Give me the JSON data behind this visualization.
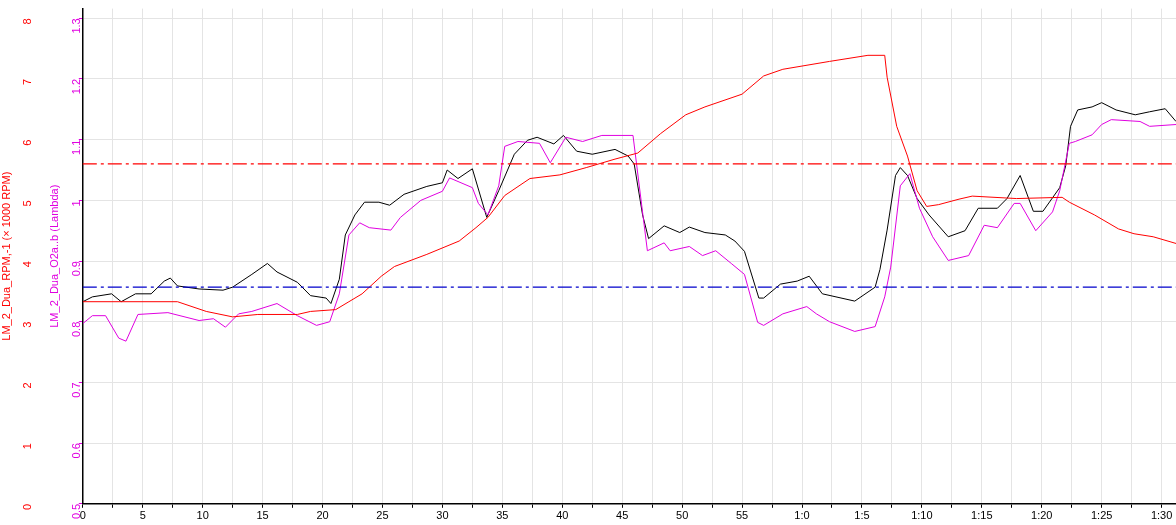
{
  "chart_data": {
    "type": "line",
    "y2label": "LM_2_Dua_O2a..b (Lambda)",
    "ylabel": "LM_2_Dua_RPM,-1 (× 1000 RPM)",
    "xlim": [
      0,
      91.2
    ],
    "xticks": [
      0,
      {
        "value": 2.5,
        "label": null
      },
      5,
      {
        "value": 7.5,
        "label": null
      },
      10,
      {
        "value": 12.5,
        "label": null
      },
      15,
      {
        "value": 17.5,
        "label": null
      },
      20,
      {
        "value": 22.5,
        "label": null
      },
      25,
      {
        "value": 27.5,
        "label": null
      },
      30,
      {
        "value": 32.5,
        "label": null
      },
      35,
      {
        "value": 37.5,
        "label": null
      },
      40,
      {
        "value": 42.5,
        "label": null
      },
      45,
      {
        "value": 47.5,
        "label": null
      },
      50,
      {
        "value": 52.5,
        "label": null
      },
      55,
      {
        "value": 57.5,
        "label": null
      },
      {
        "value": 60,
        "label": "1:0"
      },
      {
        "value": 62.5,
        "label": null
      },
      {
        "value": 65,
        "label": "1:5"
      },
      {
        "value": 67.5,
        "label": null
      },
      {
        "value": 70,
        "label": "1:10"
      },
      {
        "value": 72.5,
        "label": null
      },
      {
        "value": 75,
        "label": "1:15"
      },
      {
        "value": 77.5,
        "label": null
      },
      {
        "value": 80,
        "label": "1:20"
      },
      {
        "value": 82.5,
        "label": null
      },
      {
        "value": 85,
        "label": "1:25"
      },
      {
        "value": 87.5,
        "label": null
      },
      {
        "value": 90,
        "label": "1:30"
      }
    ],
    "y2lim": [
      0.5,
      1.316
    ],
    "y2ticks": [
      0.5,
      0.6,
      0.7,
      0.8,
      0.9,
      1.0,
      1.1,
      1.2,
      1.3
    ],
    "ylim": [
      0,
      8.16
    ],
    "yticks": [
      0,
      1,
      2,
      3,
      4,
      5,
      6,
      7,
      8
    ],
    "grid": true,
    "legend": false,
    "marker": "none",
    "line_style": "solid",
    "ref_lines": [
      {
        "axis": "y",
        "value": 5.6,
        "color": "#ff0000",
        "line_style": "dashed"
      },
      {
        "axis": "y2",
        "value": 0.857,
        "color": "#0000cc",
        "line_style": "dashed"
      }
    ],
    "series": [
      {
        "color": "#ff0000",
        "axis": "y",
        "x": [
          0,
          7.9,
          10.3,
          12.5,
          14.6,
          17.9,
          19.0,
          21.1,
          22.2,
          23.3,
          24.9,
          26.0,
          28.7,
          31.4,
          32.8,
          33.8,
          35.2,
          37.3,
          39.8,
          42.0,
          44.4,
          46.3,
          48.2,
          50.3,
          51.9,
          55.0,
          56.8,
          58.4,
          62.3,
          65.5,
          66.9,
          67.1,
          67.9,
          68.8,
          69.6,
          70.4,
          71.4,
          73.1,
          74.2,
          77.9,
          81.7,
          82.3,
          84.4,
          86.4,
          87.7,
          89.3,
          91.2
        ],
        "values": [
          3.33,
          3.33,
          3.17,
          3.08,
          3.12,
          3.12,
          3.17,
          3.2,
          3.33,
          3.46,
          3.75,
          3.91,
          4.11,
          4.33,
          4.55,
          4.72,
          5.08,
          5.36,
          5.42,
          5.54,
          5.68,
          5.78,
          6.1,
          6.41,
          6.54,
          6.75,
          7.05,
          7.16,
          7.29,
          7.39,
          7.39,
          7.03,
          6.22,
          5.73,
          5.16,
          4.9,
          4.93,
          5.02,
          5.07,
          5.03,
          5.05,
          4.97,
          4.76,
          4.53,
          4.45,
          4.4,
          4.29
        ]
      },
      {
        "color": "#e000e0",
        "axis": "y2",
        "x": [
          0,
          0.8,
          1.9,
          3.0,
          3.6,
          4.6,
          7.1,
          9.7,
          10.9,
          11.9,
          13.0,
          14.1,
          16.2,
          17.9,
          19.5,
          20.6,
          21.4,
          22.2,
          23.1,
          23.9,
          25.7,
          26.5,
          28.2,
          30.0,
          30.6,
          32.5,
          33.0,
          33.8,
          34.7,
          35.2,
          36.3,
          38.1,
          39.0,
          40.3,
          41.7,
          43.3,
          45.9,
          47.1,
          48.5,
          49.0,
          50.6,
          51.7,
          52.8,
          54.1,
          55.2,
          56.3,
          56.8,
          58.4,
          60.4,
          61.2,
          62.3,
          64.4,
          66.1,
          66.9,
          67.4,
          68.2,
          69.0,
          69.8,
          70.9,
          72.2,
          73.9,
          75.2,
          76.3,
          77.7,
          78.2,
          79.5,
          80.9,
          81.5,
          82.3,
          82.8,
          84.2,
          85.0,
          85.8,
          88.2,
          89.0,
          91.2
        ],
        "values": [
          0.797,
          0.81,
          0.81,
          0.773,
          0.768,
          0.812,
          0.815,
          0.802,
          0.805,
          0.791,
          0.813,
          0.817,
          0.83,
          0.81,
          0.794,
          0.8,
          0.846,
          0.943,
          0.963,
          0.955,
          0.951,
          0.972,
          1.0,
          1.015,
          1.037,
          1.021,
          0.995,
          0.976,
          1.024,
          1.089,
          1.097,
          1.094,
          1.062,
          1.104,
          1.097,
          1.107,
          1.107,
          0.917,
          0.93,
          0.917,
          0.924,
          0.909,
          0.917,
          0.896,
          0.878,
          0.799,
          0.794,
          0.813,
          0.825,
          0.813,
          0.8,
          0.784,
          0.792,
          0.841,
          0.89,
          1.024,
          1.044,
          0.987,
          0.94,
          0.901,
          0.909,
          0.959,
          0.955,
          0.995,
          0.995,
          0.95,
          0.981,
          1.016,
          1.094,
          1.097,
          1.108,
          1.125,
          1.133,
          1.13,
          1.122,
          1.125
        ]
      },
      {
        "color": "#000000",
        "axis": "y2",
        "x": [
          0,
          0.8,
          2.4,
          3.2,
          4.4,
          5.7,
          6.8,
          7.3,
          7.9,
          9.7,
          11.7,
          12.5,
          14.1,
          15.4,
          16.2,
          17.9,
          19.0,
          20.3,
          20.7,
          21.4,
          21.9,
          22.7,
          23.5,
          24.7,
          25.6,
          26.8,
          28.7,
          30.0,
          30.4,
          31.3,
          32.5,
          33.7,
          34.7,
          36.0,
          37.1,
          37.9,
          39.3,
          40.1,
          41.2,
          42.5,
          44.4,
          45.5,
          46.0,
          46.7,
          47.2,
          48.5,
          49.8,
          50.6,
          51.9,
          53.6,
          54.4,
          55.2,
          56.4,
          56.8,
          58.2,
          59.6,
          60.6,
          61.7,
          64.4,
          66.1,
          66.5,
          67.1,
          67.8,
          68.2,
          68.8,
          69.6,
          70.6,
          72.2,
          73.6,
          74.7,
          76.3,
          77.1,
          78.2,
          79.3,
          80.1,
          81.5,
          82.0,
          82.4,
          83.0,
          84.2,
          85.0,
          86.2,
          87.8,
          89.0,
          90.3,
          91.2
        ],
        "values": [
          0.833,
          0.841,
          0.846,
          0.833,
          0.846,
          0.846,
          0.867,
          0.872,
          0.859,
          0.854,
          0.852,
          0.857,
          0.878,
          0.896,
          0.882,
          0.865,
          0.843,
          0.839,
          0.83,
          0.87,
          0.943,
          0.976,
          0.997,
          0.997,
          0.992,
          1.01,
          1.023,
          1.029,
          1.05,
          1.036,
          1.052,
          0.972,
          1.016,
          1.076,
          1.099,
          1.104,
          1.093,
          1.107,
          1.081,
          1.076,
          1.084,
          1.073,
          1.06,
          0.976,
          0.937,
          0.958,
          0.947,
          0.956,
          0.947,
          0.943,
          0.933,
          0.916,
          0.839,
          0.839,
          0.862,
          0.867,
          0.875,
          0.846,
          0.834,
          0.857,
          0.886,
          0.951,
          1.041,
          1.054,
          1.041,
          1.003,
          0.976,
          0.94,
          0.95,
          0.987,
          0.987,
          1.003,
          1.041,
          0.982,
          0.982,
          1.021,
          1.057,
          1.122,
          1.149,
          1.154,
          1.161,
          1.149,
          1.141,
          1.146,
          1.151,
          1.13
        ]
      }
    ]
  }
}
